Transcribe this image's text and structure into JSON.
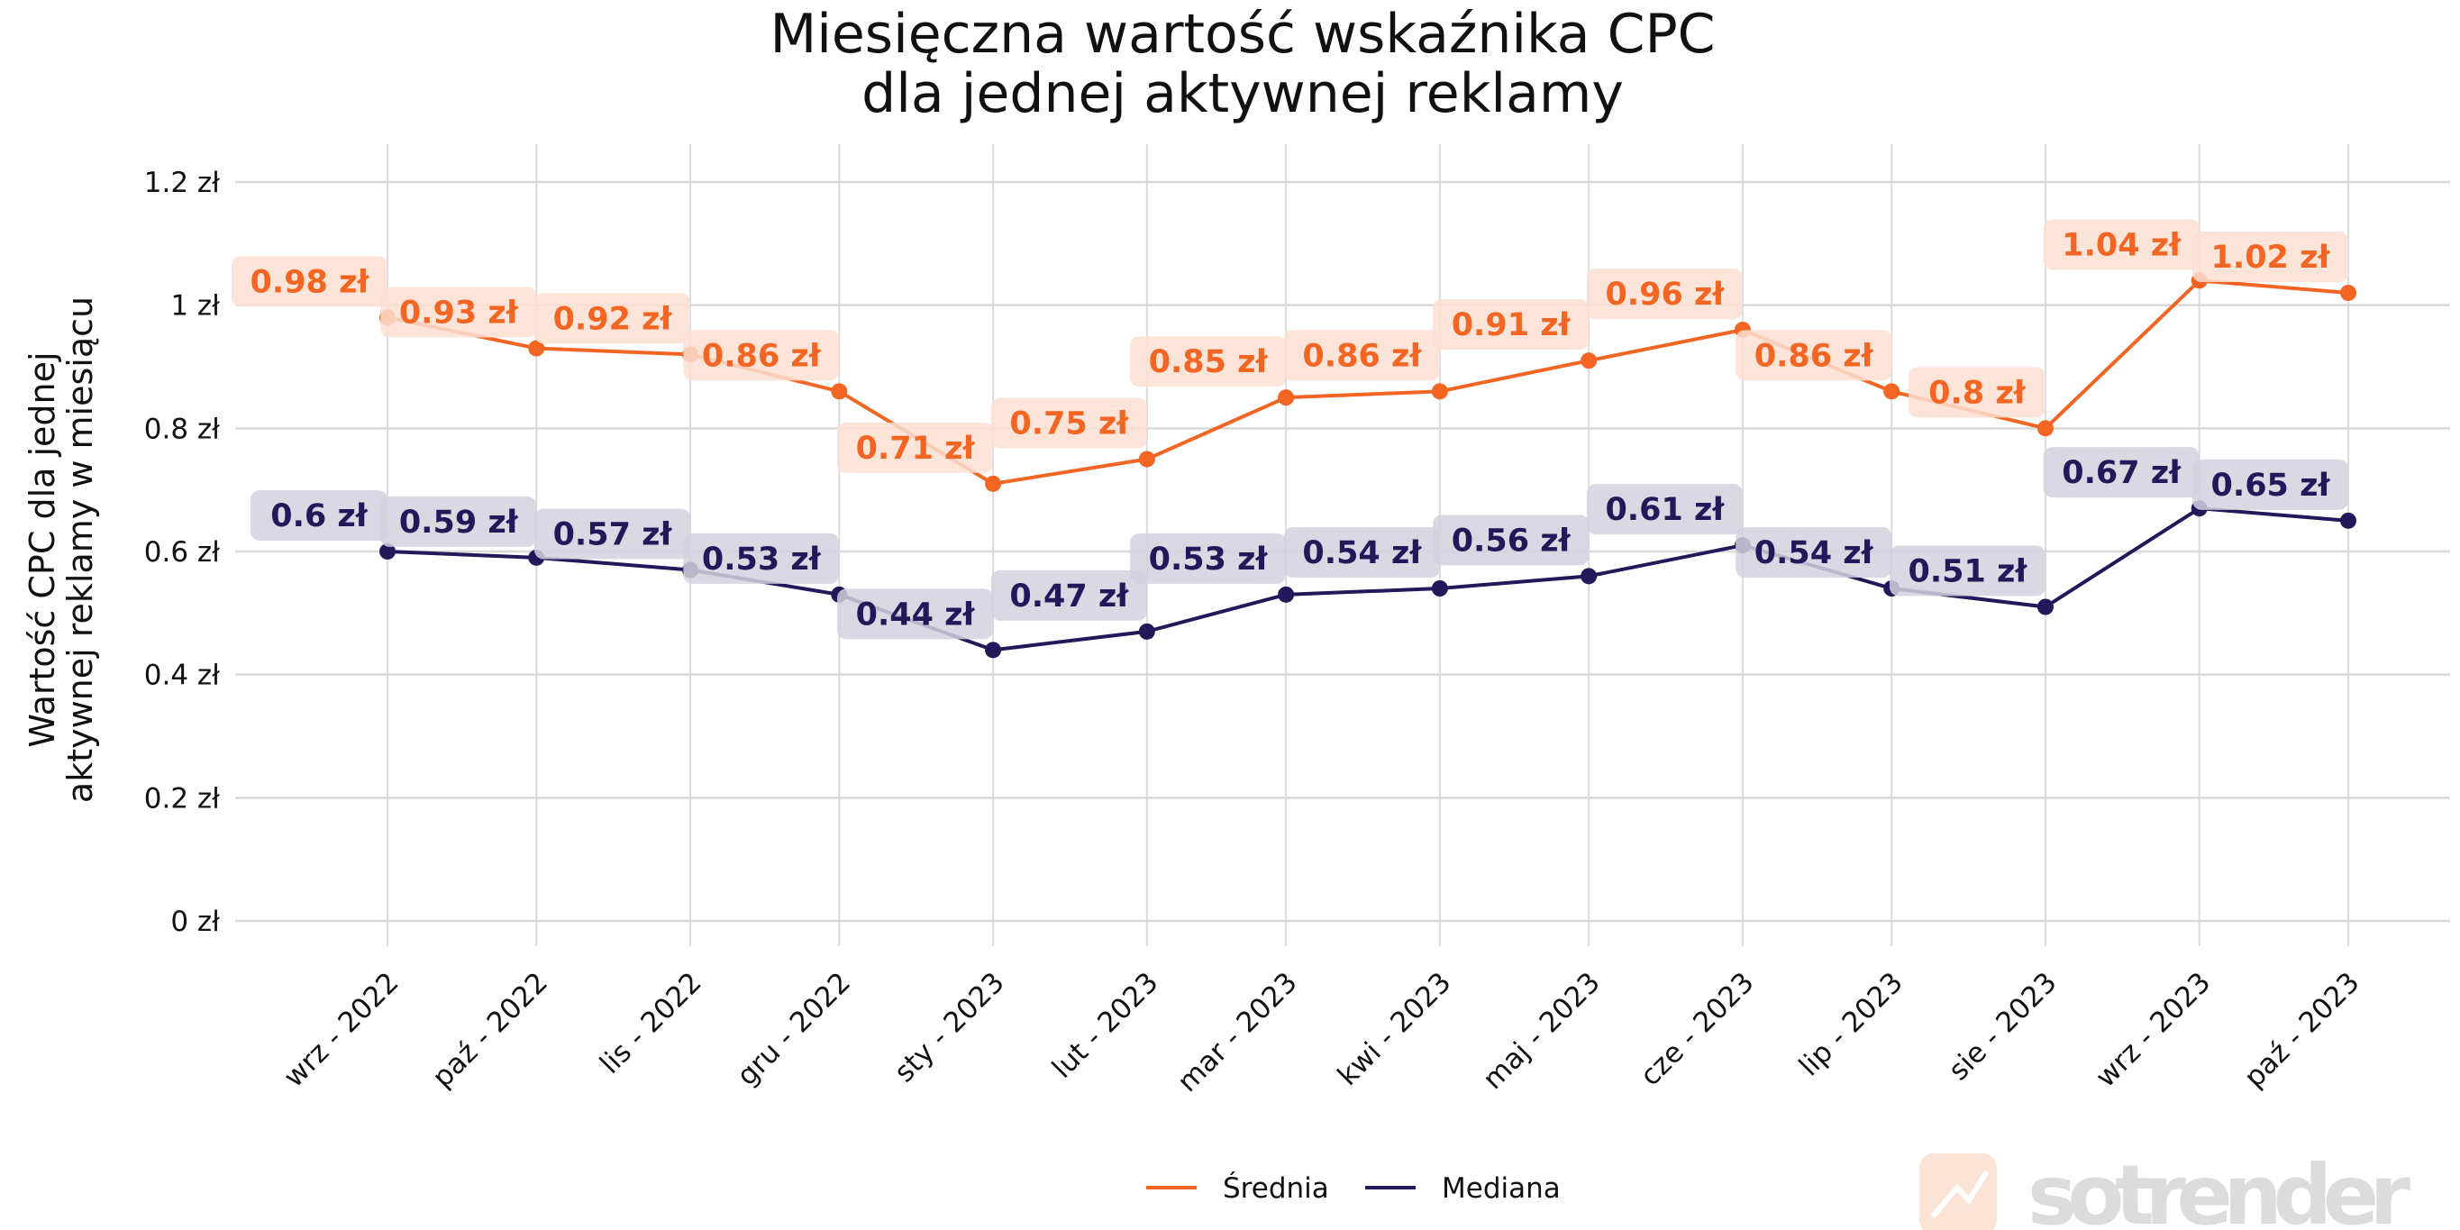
{
  "chart_data": {
    "type": "line",
    "title": "Miesięczna wartość wskaźnika CPC\ndla jednej aktywnej reklamy",
    "title_lines": [
      "Miesięczna wartość wskaźnika CPC",
      "dla jednej aktywnej reklamy"
    ],
    "xlabel": "",
    "ylabel_lines": [
      "Wartość CPC dla jednej",
      "aktywnej reklamy w miesiącu"
    ],
    "categories": [
      "wrz - 2022",
      "paź - 2022",
      "lis - 2022",
      "gru - 2022",
      "sty - 2023",
      "lut - 2023",
      "mar - 2023",
      "kwi - 2023",
      "maj - 2023",
      "cze - 2023",
      "lip - 2023",
      "sie - 2023",
      "wrz - 2023",
      "paź - 2023"
    ],
    "dates": [
      "2022-09-01",
      "2022-10-01",
      "2022-11-01",
      "2022-12-01",
      "2023-01-01",
      "2023-02-01",
      "2023-03-01",
      "2023-04-01",
      "2023-05-01",
      "2023-06-01",
      "2023-07-01",
      "2023-08-01",
      "2023-09-01",
      "2023-10-01"
    ],
    "series": [
      {
        "name": "Średnia",
        "color": "#f26522",
        "label_bg": "#fbdfd2",
        "values": [
          0.98,
          0.93,
          0.92,
          0.86,
          0.71,
          0.75,
          0.85,
          0.86,
          0.91,
          0.96,
          0.86,
          0.8,
          1.04,
          1.02
        ],
        "labels": [
          "0.98 zł",
          "0.93 zł",
          "0.92 zł",
          "0.86 zł",
          "0.71 zł",
          "0.75 zł",
          "0.85 zł",
          "0.86 zł",
          "0.91 zł",
          "0.96 zł",
          "0.86 zł",
          "0.8 zł",
          "1.04 zł",
          "1.02 zł"
        ]
      },
      {
        "name": "Mediana",
        "color": "#22185a",
        "label_bg": "#d3d1de",
        "values": [
          0.6,
          0.59,
          0.57,
          0.53,
          0.44,
          0.47,
          0.53,
          0.54,
          0.56,
          0.61,
          0.54,
          0.51,
          0.67,
          0.65
        ],
        "labels": [
          "0.6 zł",
          "0.59 zł",
          "0.57 zł",
          "0.53 zł",
          "0.44 zł",
          "0.47 zł",
          "0.53 zł",
          "0.54 zł",
          "0.56 zł",
          "0.61 zł",
          "0.54 zł",
          "0.51 zł",
          "0.67 zł",
          "0.65 zł"
        ]
      }
    ],
    "yticks": [
      0,
      0.2,
      0.4,
      0.6,
      0.8,
      1.0,
      1.2
    ],
    "ytick_labels": [
      "0 zł",
      "0.2 zł",
      "0.4 zł",
      "0.6 zł",
      "0.8 zł",
      "1 zł",
      "1.2 zł"
    ],
    "ylim": [
      -0.07,
      1.26
    ],
    "grid": true,
    "legend_position": "bottom-center"
  },
  "watermark": "sotrender"
}
